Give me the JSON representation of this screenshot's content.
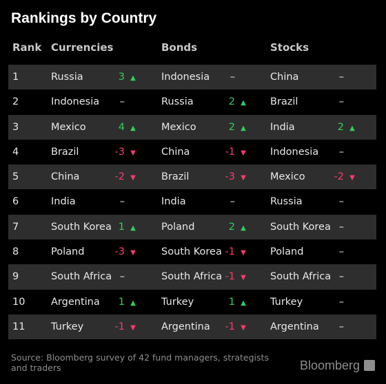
{
  "title": "Rankings by Country",
  "headers": {
    "rank": "Rank",
    "currencies": "Currencies",
    "bonds": "Bonds",
    "stocks": "Stocks"
  },
  "colors": {
    "up": "#2fd05a",
    "down": "#ff3a6e",
    "row_shade": "#2e2e2e",
    "background": "#000000"
  },
  "chart_data": {
    "type": "table",
    "title": "Rankings by Country",
    "columns": [
      "Rank",
      "Currencies",
      "Bonds",
      "Stocks"
    ],
    "rows": [
      {
        "rank": "1",
        "currencies": {
          "name": "Russia",
          "change": "3",
          "dir": "up"
        },
        "bonds": {
          "name": "Indonesia",
          "change": "–",
          "dir": "flat"
        },
        "stocks": {
          "name": "China",
          "change": "–",
          "dir": "flat"
        }
      },
      {
        "rank": "2",
        "currencies": {
          "name": "Indonesia",
          "change": "–",
          "dir": "flat"
        },
        "bonds": {
          "name": "Russia",
          "change": "2",
          "dir": "up"
        },
        "stocks": {
          "name": "Brazil",
          "change": "–",
          "dir": "flat"
        }
      },
      {
        "rank": "3",
        "currencies": {
          "name": "Mexico",
          "change": "4",
          "dir": "up"
        },
        "bonds": {
          "name": "Mexico",
          "change": "2",
          "dir": "up"
        },
        "stocks": {
          "name": "India",
          "change": "2",
          "dir": "up"
        }
      },
      {
        "rank": "4",
        "currencies": {
          "name": "Brazil",
          "change": "-3",
          "dir": "down"
        },
        "bonds": {
          "name": "China",
          "change": "-1",
          "dir": "down"
        },
        "stocks": {
          "name": "Indonesia",
          "change": "–",
          "dir": "flat"
        }
      },
      {
        "rank": "5",
        "currencies": {
          "name": "China",
          "change": "-2",
          "dir": "down"
        },
        "bonds": {
          "name": "Brazil",
          "change": "-3",
          "dir": "down"
        },
        "stocks": {
          "name": "Mexico",
          "change": "-2",
          "dir": "down"
        }
      },
      {
        "rank": "6",
        "currencies": {
          "name": "India",
          "change": "–",
          "dir": "flat"
        },
        "bonds": {
          "name": "India",
          "change": "–",
          "dir": "flat"
        },
        "stocks": {
          "name": "Russia",
          "change": "–",
          "dir": "flat"
        }
      },
      {
        "rank": "7",
        "currencies": {
          "name": "South Korea",
          "change": "1",
          "dir": "up"
        },
        "bonds": {
          "name": "Poland",
          "change": "2",
          "dir": "up"
        },
        "stocks": {
          "name": "South Korea",
          "change": "–",
          "dir": "flat"
        }
      },
      {
        "rank": "8",
        "currencies": {
          "name": "Poland",
          "change": "-3",
          "dir": "down"
        },
        "bonds": {
          "name": "South Korea",
          "change": "-1",
          "dir": "down"
        },
        "stocks": {
          "name": "Poland",
          "change": "–",
          "dir": "flat"
        }
      },
      {
        "rank": "9",
        "currencies": {
          "name": "South Africa",
          "change": "–",
          "dir": "flat"
        },
        "bonds": {
          "name": "South Africa",
          "change": "-1",
          "dir": "down"
        },
        "stocks": {
          "name": "South Africa",
          "change": "–",
          "dir": "flat"
        }
      },
      {
        "rank": "10",
        "currencies": {
          "name": "Argentina",
          "change": "1",
          "dir": "up"
        },
        "bonds": {
          "name": "Turkey",
          "change": "1",
          "dir": "up"
        },
        "stocks": {
          "name": "Turkey",
          "change": "–",
          "dir": "flat"
        }
      },
      {
        "rank": "11",
        "currencies": {
          "name": "Turkey",
          "change": "-1",
          "dir": "down"
        },
        "bonds": {
          "name": "Argentina",
          "change": "-1",
          "dir": "down"
        },
        "stocks": {
          "name": "Argentina",
          "change": "–",
          "dir": "flat"
        }
      }
    ]
  },
  "footer": {
    "source": "Source: Bloomberg survey of 42 fund managers, strategists and traders",
    "brand": "Bloomberg"
  }
}
